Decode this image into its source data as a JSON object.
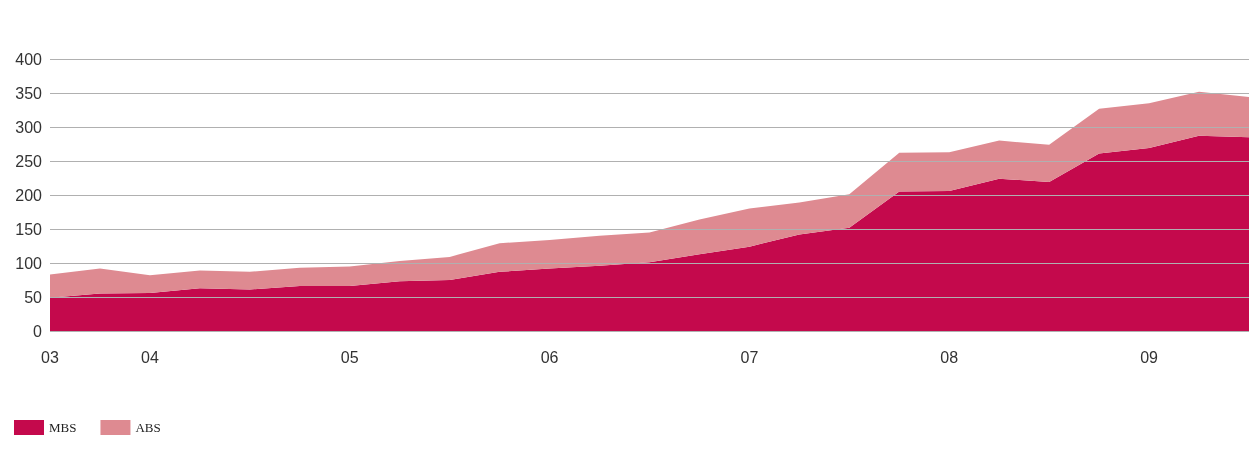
{
  "chart_data": {
    "type": "area",
    "stacked": true,
    "categories": [
      "03",
      null,
      "04",
      null,
      null,
      null,
      "05",
      null,
      null,
      null,
      "06",
      null,
      null,
      null,
      "07",
      null,
      null,
      null,
      "08",
      null,
      null,
      null,
      "09",
      null,
      null
    ],
    "ylim": [
      0,
      400
    ],
    "yticks": [
      0,
      50,
      100,
      150,
      200,
      250,
      300,
      350,
      400
    ],
    "grid": "y",
    "legend": "bottom left",
    "series": [
      {
        "name": "MBS",
        "color": "#c4094c",
        "values": [
          49,
          55,
          56,
          63,
          61,
          66,
          66,
          73,
          75,
          87,
          92,
          96,
          101,
          113,
          124,
          142,
          152,
          205,
          206,
          224,
          219,
          261,
          269,
          287,
          285
        ]
      },
      {
        "name": "ABS",
        "color": "#de8a91",
        "values": [
          34,
          37,
          26,
          26,
          26,
          27,
          29,
          30,
          34,
          42,
          42,
          44,
          44,
          51,
          56,
          47,
          49,
          57,
          57,
          56,
          55,
          66,
          66,
          65,
          59
        ]
      }
    ]
  }
}
